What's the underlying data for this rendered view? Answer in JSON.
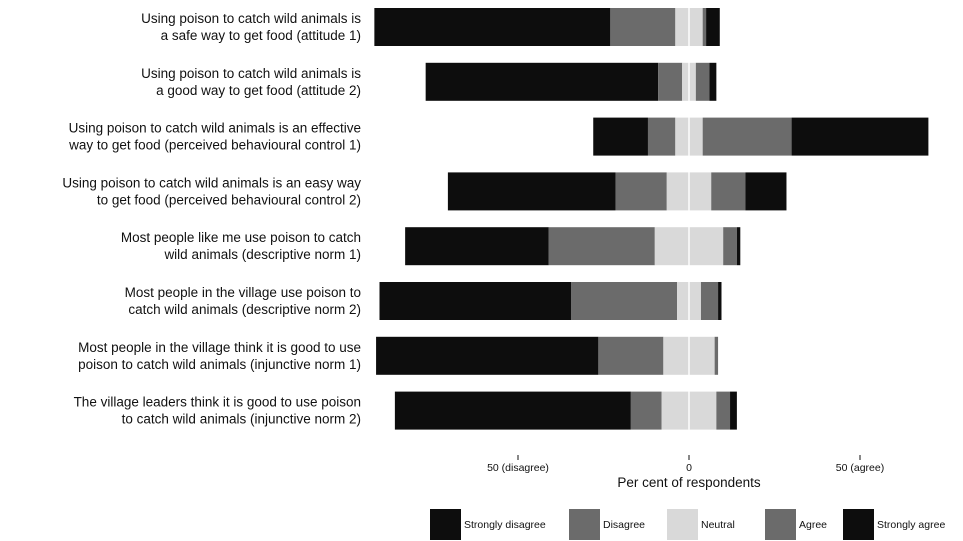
{
  "chart_data": {
    "type": "bar",
    "orientation": "horizontal-diverging",
    "xlabel": "Per cent of respondents",
    "x_ticks": [
      {
        "value": -50,
        "label": "50 (disagree)"
      },
      {
        "value": 0,
        "label": "0"
      },
      {
        "value": 50,
        "label": "50 (agree)"
      }
    ],
    "xlim": [
      -90,
      70
    ],
    "categories": [
      [
        "Using poison to catch wild animals is",
        "a safe way to get food (attitude 1)"
      ],
      [
        "Using poison to catch wild animals is",
        "a good way to get food (attitude 2)"
      ],
      [
        "Using poison to catch wild animals is an effective",
        "way to get food (perceived behavioural control 1)"
      ],
      [
        "Using poison to catch wild animals is an easy way",
        "to get food (perceived behavioural control 2)"
      ],
      [
        "Most people like me use poison to catch",
        "wild animals (descriptive norm 1)"
      ],
      [
        "Most people in the village use poison to",
        "catch wild animals (descriptive norm 2)"
      ],
      [
        "Most people in the village think it is good to use",
        "poison to catch wild animals (injunctive norm 1)"
      ],
      [
        "The village leaders think it is good to use poison",
        "to catch wild animals (injunctive norm 2)"
      ]
    ],
    "series": [
      {
        "name": "Strongly disagree",
        "color": "#0d0d0d",
        "values": [
          69,
          68,
          16,
          49,
          42,
          56,
          65,
          69
        ]
      },
      {
        "name": "Disagree",
        "color": "#6b6b6b",
        "values": [
          19,
          7,
          8,
          15,
          31,
          31,
          19,
          9
        ]
      },
      {
        "name": "Neutral",
        "color": "#d9d9d9",
        "values": [
          8,
          4,
          8,
          13,
          20,
          7,
          15,
          16
        ]
      },
      {
        "name": "Agree",
        "color": "#6b6b6b",
        "values": [
          1,
          4,
          26,
          10,
          4,
          5,
          1,
          4
        ]
      },
      {
        "name": "Strongly agree",
        "color": "#0d0d0d",
        "values": [
          4,
          2,
          40,
          12,
          1,
          1,
          0,
          2
        ]
      }
    ],
    "legend_position": "bottom",
    "grid": false
  }
}
